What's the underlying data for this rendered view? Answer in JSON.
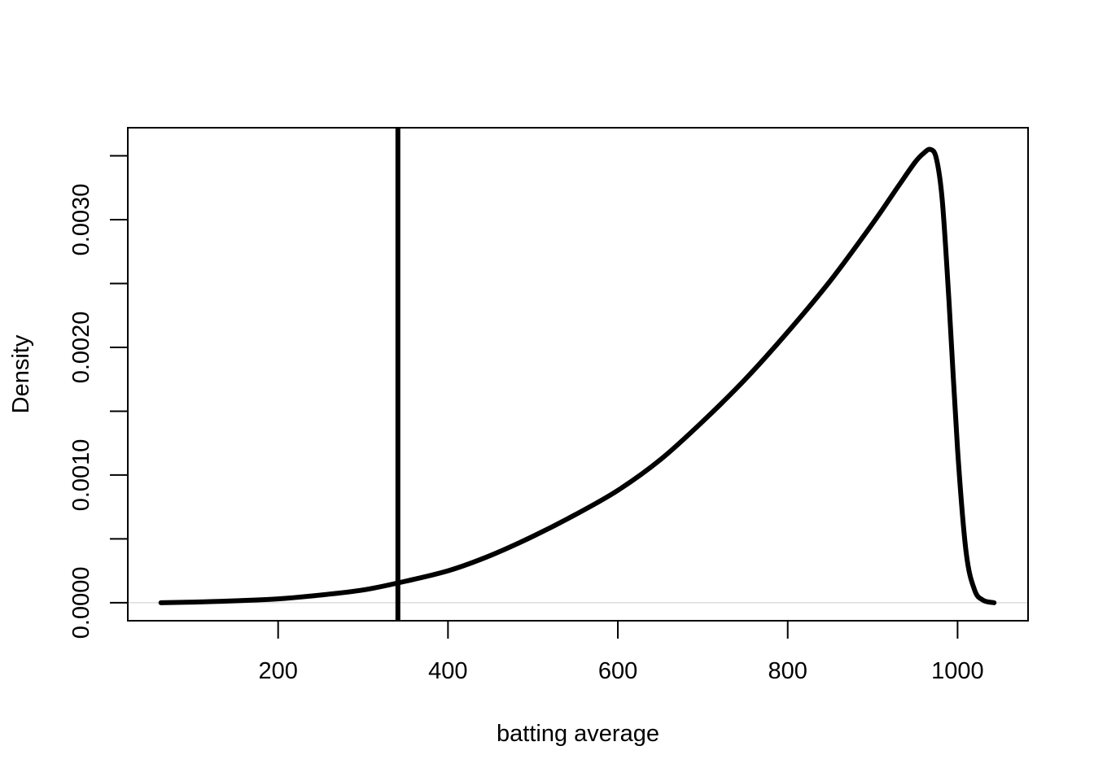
{
  "chart_data": {
    "type": "line",
    "title": "",
    "xlabel": "batting average",
    "ylabel": "Density",
    "xlim": [
      23,
      1083
    ],
    "ylim": [
      -0.000141,
      0.00372
    ],
    "x_ticks": [
      200,
      400,
      600,
      800,
      1000
    ],
    "x_tick_labels": [
      "200",
      "400",
      "600",
      "800",
      "1000"
    ],
    "y_ticks": [
      0,
      0.0005,
      0.001,
      0.0015,
      0.002,
      0.0025,
      0.003,
      0.0035
    ],
    "y_tick_labels": [
      "0.0000",
      "",
      "0.0010",
      "",
      "0.0020",
      "",
      "0.0030",
      ""
    ],
    "grid": false,
    "zero_line": true,
    "vline": {
      "x": 341
    },
    "series": [
      {
        "x": [
          62,
          100,
          150,
          200,
          250,
          300,
          341,
          400,
          450,
          500,
          550,
          600,
          650,
          700,
          750,
          800,
          850,
          900,
          930,
          950,
          960,
          968,
          975,
          982,
          990,
          1000,
          1010,
          1020,
          1030,
          1043
        ],
        "y": [
          0,
          5e-06,
          1.5e-05,
          3e-05,
          6e-05,
          0.0001,
          0.000155,
          0.00025,
          0.00037,
          0.00052,
          0.00069,
          0.00088,
          0.00112,
          0.00142,
          0.00175,
          0.00212,
          0.00252,
          0.00297,
          0.00326,
          0.00345,
          0.00352,
          0.00355,
          0.00348,
          0.00315,
          0.00235,
          0.0012,
          0.0004,
          0.0001,
          2e-05,
          0
        ]
      }
    ]
  }
}
